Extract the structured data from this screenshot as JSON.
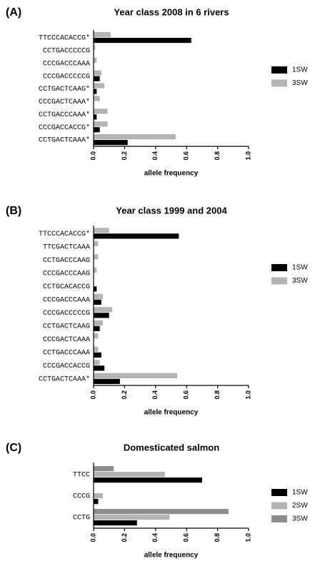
{
  "chart_data": [
    {
      "type": "bar",
      "orientation": "horizontal",
      "panel": "(A)",
      "title": "Year class 2008 in 6 rivers",
      "categories": [
        "TTCCCACACCG*",
        "CCTGACCCCCG",
        "CCCGACCCAAA",
        "CCCGACCCCCG",
        "CCTGACTCAAG*",
        "CCCGACTCAAA*",
        "CCTGACCCAAA*",
        "CCCGACCACCG*",
        "CCTGACTCAAA*"
      ],
      "series": [
        {
          "name": "1SW",
          "color": "#000000",
          "values": [
            0.63,
            0,
            0,
            0.04,
            0.02,
            0,
            0.02,
            0.04,
            0.22
          ]
        },
        {
          "name": "3SW",
          "color": "#b3b3b3",
          "values": [
            0.11,
            0.01,
            0.02,
            0.05,
            0.07,
            0.04,
            0.09,
            0.09,
            0.53
          ]
        }
      ],
      "xlabel": "allele frequency",
      "xlim": [
        0,
        1
      ],
      "xticks": [
        {
          "value": 0,
          "label": "0.0"
        },
        0.2,
        0.4,
        0.6,
        0.8,
        {
          "value": 1,
          "label": "1.0"
        }
      ],
      "legend": "right"
    },
    {
      "type": "bar",
      "orientation": "horizontal",
      "panel": "(B)",
      "title": "Year class 1999 and 2004",
      "categories": [
        "TTCCCACACCG*",
        "TTCGACTCAAA",
        "CCTGACCCAAG",
        "CCCGACCCAAG",
        "CCTGCACACCG",
        "CCCGACCCAAA",
        "CCCGACCCCCG",
        "CCTGACTCAAG",
        "CCCGACTCAAA",
        "CCTGACCCAAA",
        "CCCGACCACCG",
        "CCTGACTCAAA*"
      ],
      "series": [
        {
          "name": "1SW",
          "color": "#000000",
          "values": [
            0.55,
            0,
            0,
            0,
            0.02,
            0.05,
            0.1,
            0.04,
            0,
            0.05,
            0.07,
            0.17
          ]
        },
        {
          "name": "3SW",
          "color": "#b3b3b3",
          "values": [
            0.1,
            0.03,
            0.03,
            0.02,
            0,
            0.06,
            0.12,
            0.06,
            0.03,
            0.03,
            0.04,
            0.54
          ]
        }
      ],
      "xlabel": "allele frequency",
      "xlim": [
        0,
        1
      ],
      "xticks": [
        {
          "value": 0,
          "label": "0.0"
        },
        0.2,
        0.4,
        0.6,
        0.8,
        {
          "value": 1,
          "label": "1.0"
        }
      ],
      "legend": "right"
    },
    {
      "type": "bar",
      "orientation": "horizontal",
      "panel": "(C)",
      "title": "Domesticated salmon",
      "categories": [
        "TTCC",
        "CCCG",
        "CCTG"
      ],
      "series": [
        {
          "name": "1SW",
          "color": "#000000",
          "values": [
            0.7,
            0.03,
            0.28
          ]
        },
        {
          "name": "2SW",
          "color": "#b3b3b3",
          "values": [
            0.46,
            0.06,
            0.49
          ]
        },
        {
          "name": "3SW",
          "color": "#8c8c8c",
          "values": [
            0.13,
            0,
            0.87
          ]
        }
      ],
      "xlabel": "allele frequency",
      "xlim": [
        0,
        1
      ],
      "xticks": [
        {
          "value": 0,
          "label": "0.0"
        },
        0.2,
        0.4,
        0.6,
        0.8,
        {
          "value": 1,
          "label": "1.0"
        }
      ],
      "legend": "right"
    }
  ]
}
